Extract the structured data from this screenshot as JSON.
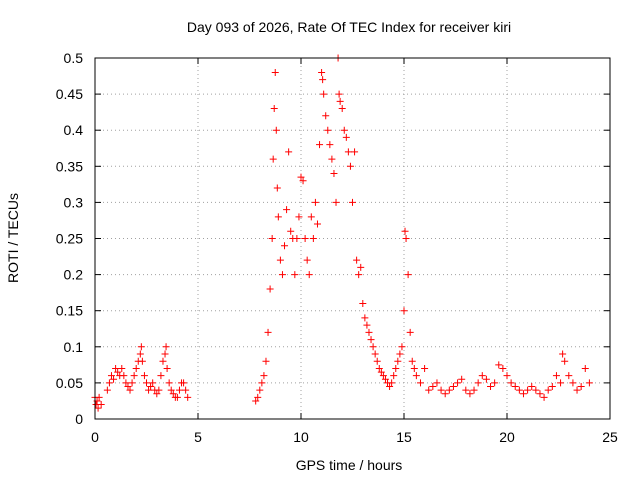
{
  "chart_data": {
    "type": "scatter",
    "title": "Day 093 of 2026, Rate Of TEC Index for receiver kiri",
    "xlabel": "GPS time / hours",
    "ylabel": "ROTI / TECUs",
    "xlim": [
      0,
      25
    ],
    "ylim": [
      0,
      0.5
    ],
    "xticks": [
      "0",
      "5",
      "10",
      "15",
      "20",
      "25"
    ],
    "yticks": [
      "0",
      "0.05",
      "0.1",
      "0.15",
      "0.2",
      "0.25",
      "0.3",
      "0.35",
      "0.4",
      "0.45",
      "0.5"
    ],
    "grid": true,
    "marker": "plus",
    "color": "#ff0000",
    "series": [
      {
        "x": [
          0.0,
          0.05,
          0.1,
          0.15,
          0.2,
          0.3,
          0.6,
          0.7,
          0.8,
          0.9,
          1.0,
          1.1,
          1.2,
          1.3,
          1.4,
          1.5,
          1.6,
          1.7,
          1.8,
          1.9,
          2.0,
          2.1,
          2.2,
          2.25,
          2.3,
          2.4,
          2.5,
          2.6,
          2.7,
          2.8,
          2.9,
          3.0,
          3.1,
          3.2,
          3.3,
          3.4,
          3.45,
          3.5,
          3.6,
          3.7,
          3.8,
          3.9,
          4.0,
          4.1,
          4.2,
          4.3,
          4.4,
          4.5,
          7.8,
          7.9,
          8.0,
          8.1,
          8.2,
          8.3,
          8.4,
          8.5,
          8.6,
          8.65,
          8.7,
          8.75,
          8.8,
          8.85,
          8.9,
          9.0,
          9.1,
          9.2,
          9.3,
          9.4,
          9.5,
          9.6,
          9.7,
          9.8,
          9.9,
          10.0,
          10.1,
          10.2,
          10.3,
          10.4,
          10.5,
          10.6,
          10.7,
          10.8,
          10.9,
          11.0,
          11.05,
          11.1,
          11.2,
          11.3,
          11.4,
          11.5,
          11.6,
          11.7,
          11.8,
          11.85,
          11.9,
          12.0,
          12.1,
          12.2,
          12.3,
          12.4,
          12.5,
          12.6,
          12.7,
          12.8,
          12.9,
          13.0,
          13.1,
          13.2,
          13.3,
          13.4,
          13.5,
          13.6,
          13.7,
          13.8,
          13.9,
          14.0,
          14.1,
          14.2,
          14.3,
          14.4,
          14.5,
          14.6,
          14.7,
          14.8,
          14.9,
          15.0,
          15.05,
          15.1,
          15.2,
          15.3,
          15.4,
          15.5,
          15.6,
          15.8,
          16.0,
          16.2,
          16.4,
          16.6,
          16.8,
          17.0,
          17.2,
          17.4,
          17.6,
          17.8,
          18.0,
          18.2,
          18.4,
          18.6,
          18.8,
          19.0,
          19.2,
          19.4,
          19.6,
          19.8,
          20.0,
          20.2,
          20.4,
          20.6,
          20.8,
          21.0,
          21.2,
          21.4,
          21.6,
          21.8,
          22.0,
          22.2,
          22.4,
          22.6,
          22.7,
          22.8,
          23.0,
          23.2,
          23.4,
          23.6,
          23.8,
          24.0
        ],
        "y": [
          0.03,
          0.02,
          0.025,
          0.015,
          0.03,
          0.02,
          0.04,
          0.05,
          0.06,
          0.055,
          0.07,
          0.065,
          0.06,
          0.07,
          0.06,
          0.05,
          0.045,
          0.04,
          0.05,
          0.06,
          0.07,
          0.08,
          0.09,
          0.1,
          0.08,
          0.06,
          0.05,
          0.04,
          0.045,
          0.05,
          0.04,
          0.035,
          0.04,
          0.06,
          0.08,
          0.09,
          0.1,
          0.07,
          0.05,
          0.04,
          0.035,
          0.03,
          0.03,
          0.04,
          0.05,
          0.05,
          0.04,
          0.03,
          0.025,
          0.03,
          0.04,
          0.05,
          0.06,
          0.08,
          0.12,
          0.18,
          0.25,
          0.36,
          0.43,
          0.48,
          0.4,
          0.32,
          0.28,
          0.22,
          0.2,
          0.24,
          0.29,
          0.37,
          0.26,
          0.25,
          0.2,
          0.25,
          0.28,
          0.335,
          0.33,
          0.25,
          0.22,
          0.2,
          0.28,
          0.25,
          0.3,
          0.27,
          0.38,
          0.48,
          0.47,
          0.45,
          0.42,
          0.4,
          0.38,
          0.36,
          0.34,
          0.3,
          0.5,
          0.45,
          0.44,
          0.43,
          0.4,
          0.39,
          0.37,
          0.35,
          0.3,
          0.37,
          0.22,
          0.2,
          0.21,
          0.16,
          0.14,
          0.13,
          0.12,
          0.11,
          0.1,
          0.09,
          0.08,
          0.07,
          0.065,
          0.06,
          0.055,
          0.05,
          0.045,
          0.05,
          0.06,
          0.07,
          0.08,
          0.09,
          0.1,
          0.15,
          0.26,
          0.25,
          0.2,
          0.12,
          0.08,
          0.07,
          0.06,
          0.05,
          0.07,
          0.04,
          0.045,
          0.05,
          0.04,
          0.035,
          0.04,
          0.045,
          0.05,
          0.055,
          0.04,
          0.035,
          0.04,
          0.05,
          0.06,
          0.055,
          0.045,
          0.05,
          0.075,
          0.07,
          0.06,
          0.05,
          0.045,
          0.04,
          0.035,
          0.04,
          0.045,
          0.04,
          0.035,
          0.03,
          0.04,
          0.045,
          0.06,
          0.05,
          0.09,
          0.08,
          0.06,
          0.05,
          0.04,
          0.045,
          0.07,
          0.05
        ]
      }
    ]
  }
}
